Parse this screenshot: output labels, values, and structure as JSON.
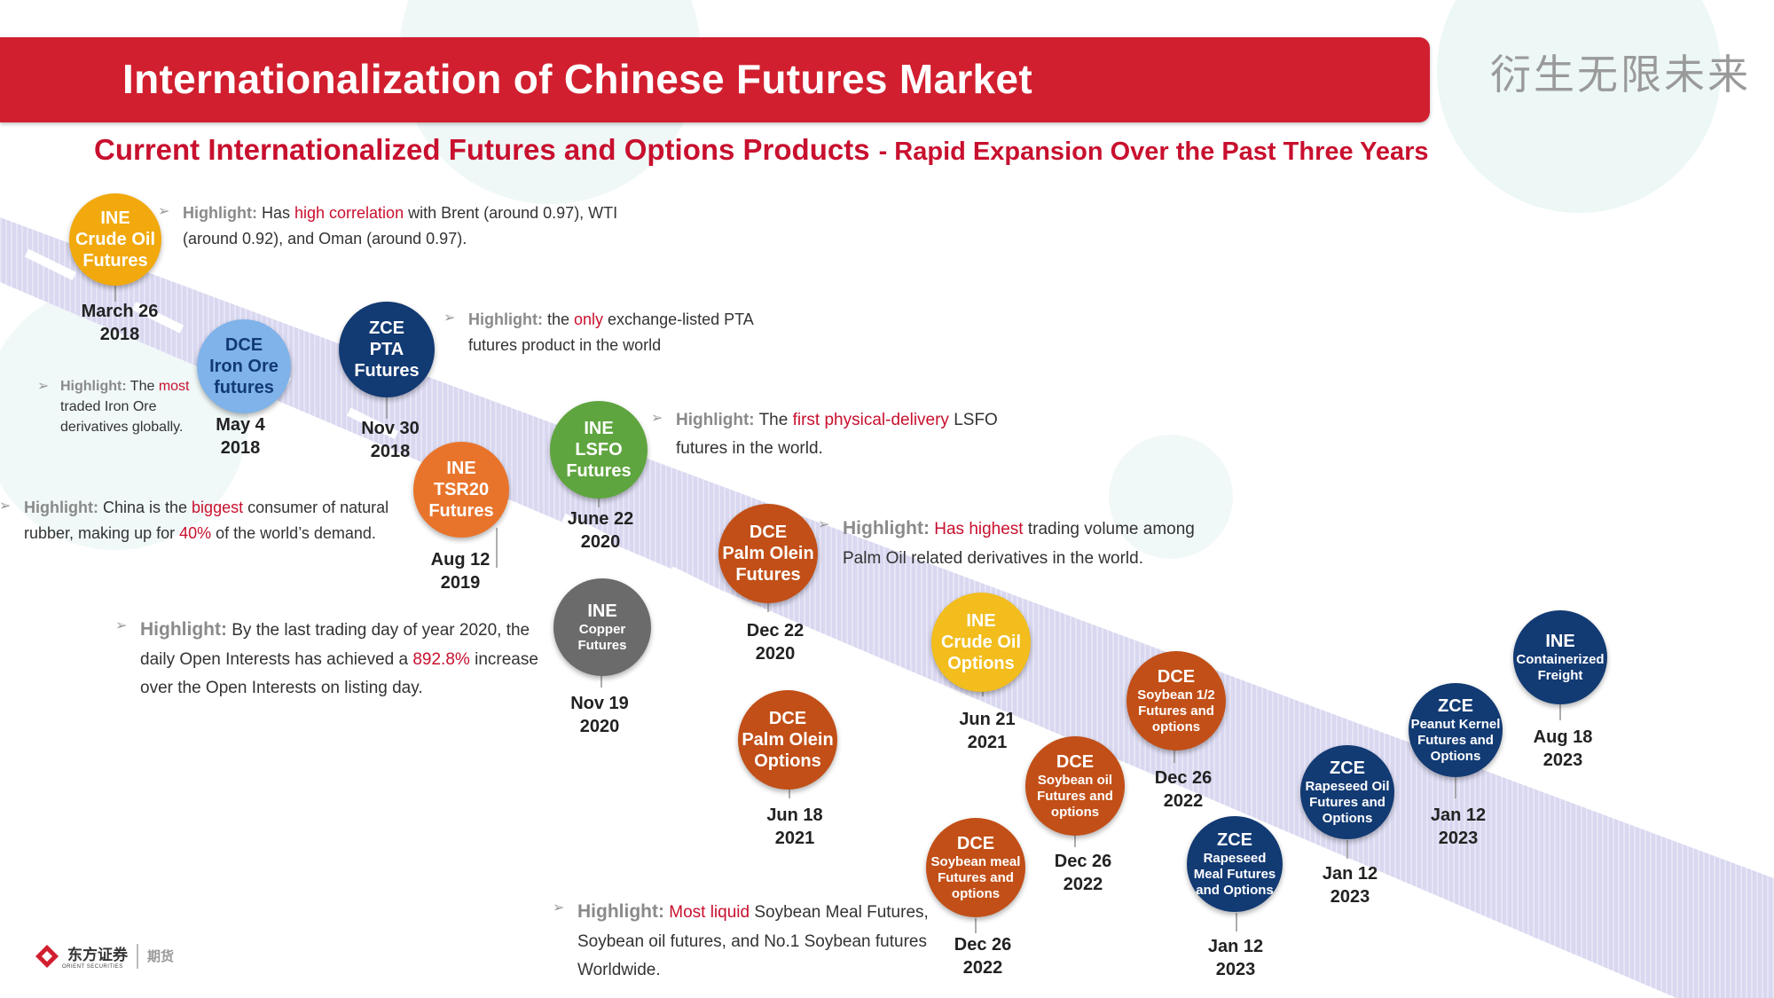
{
  "header": {
    "title": "Internationalization of Chinese Futures Market",
    "slogan": "衍生无限未来"
  },
  "subtitle": {
    "main": "Current Internationalized Futures and Options Products",
    "sub": "- Rapid Expansion Over the Past Three Years"
  },
  "colors": {
    "banner_red": "#d11f2f",
    "title_red": "#c8102e",
    "ine_gold": "#f2a90d",
    "dce_light_blue": "#7fb3ea",
    "zce_navy": "#123a73",
    "tsr_orange": "#e8742c",
    "lsfo_green": "#5fa53f",
    "copper_gray": "#6b6b6b",
    "dce_rust": "#c24f17",
    "road": "#d7d6ef"
  },
  "products": [
    {
      "exchange": "INE",
      "name": [
        "Crude Oil",
        "Futures"
      ],
      "date": [
        "March 26",
        "2018"
      ],
      "color": "#f2a90d"
    },
    {
      "exchange": "DCE",
      "name": [
        "Iron Ore",
        "futures"
      ],
      "date": [
        "May 4",
        "2018"
      ],
      "color": "#7fb3ea"
    },
    {
      "exchange": "ZCE",
      "name": [
        "PTA",
        "Futures"
      ],
      "date": [
        "Nov 30",
        "2018"
      ],
      "color": "#123a73"
    },
    {
      "exchange": "INE",
      "name": [
        "TSR20",
        "Futures"
      ],
      "date": [
        "Aug 12",
        "2019"
      ],
      "color": "#e8742c"
    },
    {
      "exchange": "INE",
      "name": [
        "LSFO",
        "Futures"
      ],
      "date": [
        "June 22",
        "2020"
      ],
      "color": "#5fa53f"
    },
    {
      "exchange": "INE",
      "name": [
        "Copper",
        "Futures"
      ],
      "date": [
        "Nov 19",
        "2020"
      ],
      "color": "#6b6b6b"
    },
    {
      "exchange": "DCE",
      "name": [
        "Palm Olein",
        "Futures"
      ],
      "date": [
        "Dec 22",
        "2020"
      ],
      "color": "#c24f17"
    },
    {
      "exchange": "DCE",
      "name": [
        "Palm Olein",
        "Options"
      ],
      "date": [
        "Jun 18",
        "2021"
      ],
      "color": "#c24f17"
    },
    {
      "exchange": "INE",
      "name": [
        "Crude Oil",
        "Options"
      ],
      "date": [
        "Jun 21",
        "2021"
      ],
      "color": "#f2bd1d"
    },
    {
      "exchange": "DCE",
      "name": [
        "Soybean meal",
        "Futures and",
        "options"
      ],
      "date": [
        "Dec 26",
        "2022"
      ],
      "color": "#c24f17"
    },
    {
      "exchange": "DCE",
      "name": [
        "Soybean oil",
        "Futures and",
        "options"
      ],
      "date": [
        "Dec 26",
        "2022"
      ],
      "color": "#c24f17"
    },
    {
      "exchange": "DCE",
      "name": [
        "Soybean 1/2",
        "Futures and",
        "options"
      ],
      "date": [
        "Dec 26",
        "2022"
      ],
      "color": "#c24f17"
    },
    {
      "exchange": "ZCE",
      "name": [
        "Rapeseed",
        "Meal Futures",
        "and Options"
      ],
      "date": [
        "Jan 12",
        "2023"
      ],
      "color": "#123a73"
    },
    {
      "exchange": "ZCE",
      "name": [
        "Rapeseed Oil",
        "Futures and",
        "Options"
      ],
      "date": [
        "Jan 12",
        "2023"
      ],
      "color": "#123a73"
    },
    {
      "exchange": "ZCE",
      "name": [
        "Peanut Kernel",
        "Futures and",
        "Options"
      ],
      "date": [
        "Jan 12",
        "2023"
      ],
      "color": "#123a73"
    },
    {
      "exchange": "INE",
      "name": [
        "Containerized",
        "Freight"
      ],
      "date": [
        "Aug 18",
        "2023"
      ],
      "color": "#123a73"
    }
  ],
  "highlights": {
    "label": "Highlight:",
    "crude": {
      "p1": " Has ",
      "red": "high correlation",
      "p2": " with Brent (around 0.97), WTI",
      "p3": "(around 0.92), and Oman (around 0.97)."
    },
    "pta": {
      "p1": " the ",
      "red": "only",
      "p2": " exchange-listed PTA",
      "p3": "futures product in the world"
    },
    "iron": {
      "p1": " The ",
      "red": "most",
      "p2": "traded Iron Ore",
      "p3": "derivatives globally."
    },
    "lsfo": {
      "p1": " The ",
      "red": "first physical-delivery",
      "p2": " LSFO",
      "p3": "futures in the world."
    },
    "rubber": {
      "p1": " China is the ",
      "red": "biggest",
      "p2": " consumer of natural",
      "p3": "rubber, making up for ",
      "red2": "40%",
      "p4": " of the world’s demand."
    },
    "palm": {
      "p1": " ",
      "red": "Has highest",
      "p2": " trading volume among",
      "p3": "Palm Oil related derivatives in the world."
    },
    "copper": {
      "p1": " By the last trading day of year 2020, the",
      "p2": "daily Open Interests has achieved a ",
      "red": "892.8%",
      "p3": " increase",
      "p4": "over the Open Interests on listing day."
    },
    "soy": {
      "red": "Most liquid",
      "p1": " Soybean Meal Futures,",
      "p2": "Soybean oil futures, and No.1 Soybean futures",
      "p3": "Worldwide."
    }
  },
  "footer": {
    "logo_cn": "东方证券",
    "logo_en": "ORIENT SECURITIES",
    "tag": "期货"
  }
}
